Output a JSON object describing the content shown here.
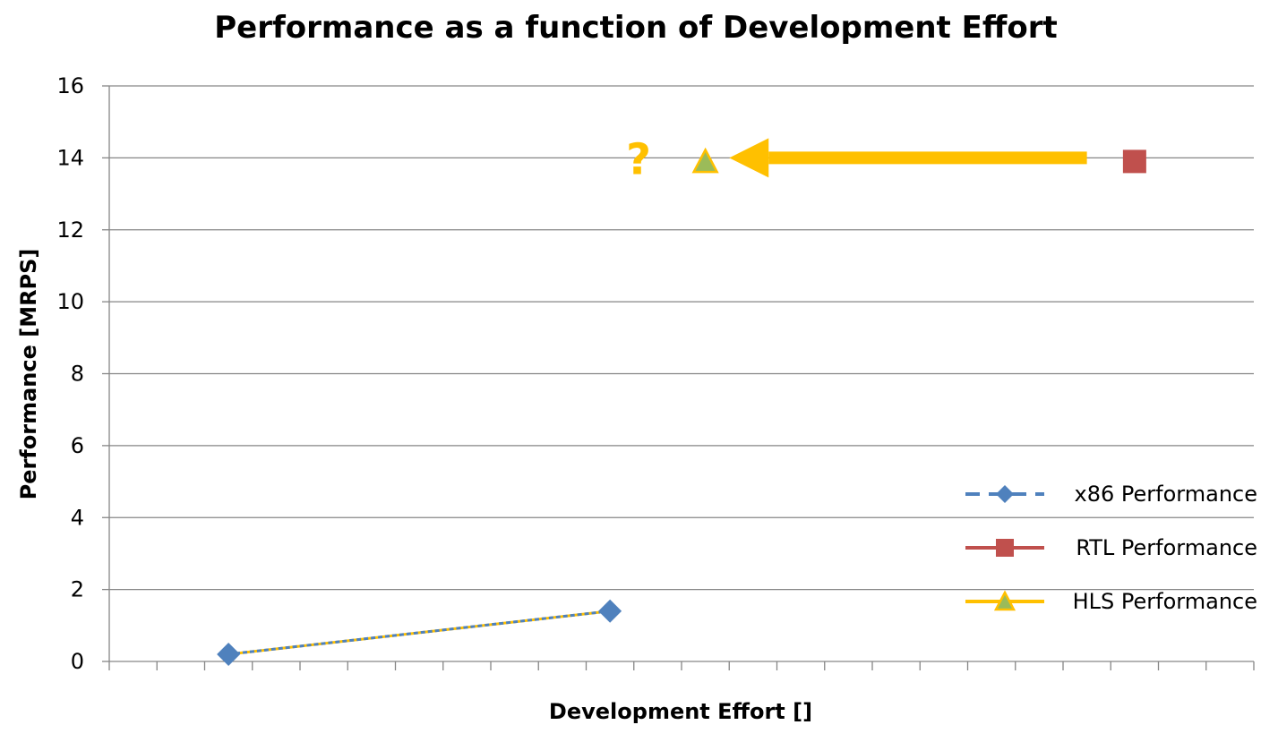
{
  "chart_data": {
    "type": "line",
    "title": "Performance as a function of Development Effort",
    "xlabel": "Development Effort []",
    "ylabel": "Performance [MRPS]",
    "ylim": [
      0,
      16
    ],
    "yticks": [
      "0",
      "2",
      "4",
      "6",
      "8",
      "10",
      "12",
      "14",
      "16"
    ],
    "xlim": [
      0,
      24
    ],
    "x_tick_labels": "none",
    "grid": "horizontal",
    "legend_position": "right",
    "series": [
      {
        "name": "x86 Performance",
        "color": "#4f81bd",
        "marker": "diamond",
        "line": "dashed",
        "x": [
          2.5,
          10.5
        ],
        "y": [
          0.2,
          1.4
        ]
      },
      {
        "name": "RTL Performance",
        "color": "#c0504d",
        "marker": "square",
        "line": "solid",
        "x": [
          21.5
        ],
        "y": [
          13.9
        ]
      },
      {
        "name": "HLS Performance",
        "color": "#ffc000",
        "marker_fill": "#9bbb59",
        "marker": "triangle",
        "line": "solid",
        "x": [
          12.5
        ],
        "y": [
          13.9
        ]
      }
    ],
    "annotations": [
      {
        "type": "arrow",
        "color": "#ffc000",
        "from": [
          20.5,
          14
        ],
        "to": [
          13.0,
          14
        ]
      },
      {
        "type": "text",
        "text": "?",
        "color": "#ffc000",
        "x": 11.1,
        "y": 14
      }
    ]
  }
}
